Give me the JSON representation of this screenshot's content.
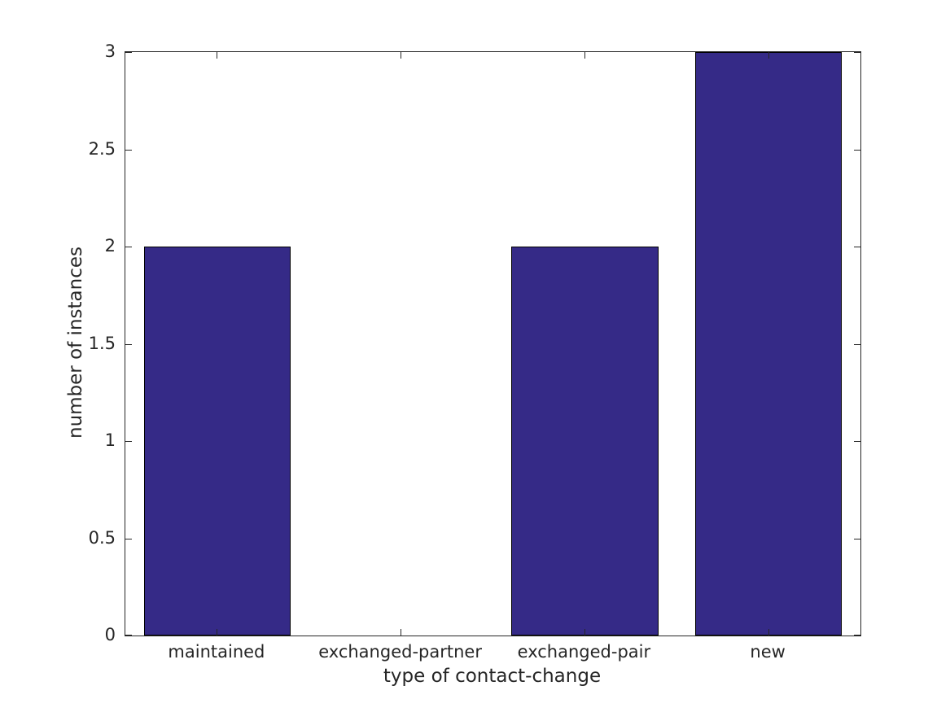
{
  "figure": {
    "background": "#ffffff",
    "text_color": "#262626",
    "axis_color": "#262626"
  },
  "chart_data": {
    "type": "bar",
    "title": "",
    "categories": [
      "maintained",
      "exchanged-partner",
      "exchanged-pair",
      "new"
    ],
    "values": [
      2,
      0,
      2,
      3
    ],
    "xlabel": "type of contact-change",
    "ylabel": "number of instances",
    "ylim": [
      0,
      3
    ],
    "yticks": [
      0,
      0.5,
      1,
      1.5,
      2,
      2.5,
      3
    ],
    "ytick_labels": [
      "0",
      "0.5",
      "1",
      "1.5",
      "2",
      "2.5",
      "3"
    ],
    "bar_width_fraction": 0.8,
    "bar_fill": "#352a87",
    "bar_edge": "#000000",
    "grid": false,
    "legend": null,
    "tick_style": "inward, mirrored on all four box sides"
  }
}
